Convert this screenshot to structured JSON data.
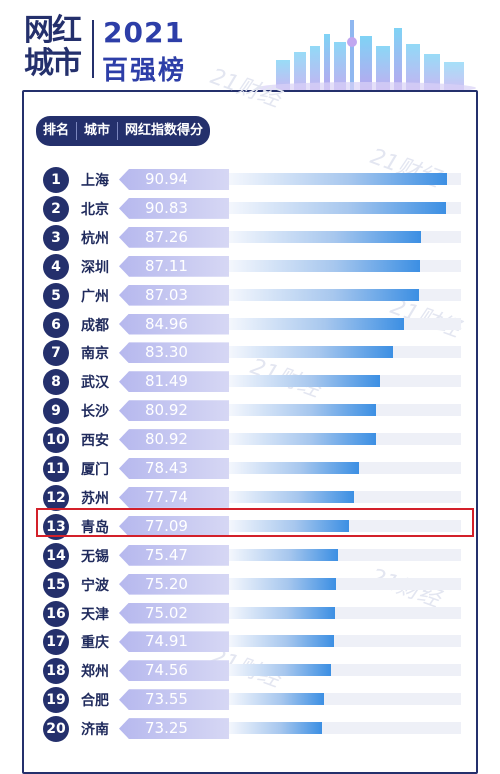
{
  "title": {
    "logo_text": "网红城市",
    "year": "2021",
    "subtitle": "百强榜"
  },
  "header": {
    "rank": "排名",
    "city": "城市",
    "score": "网红指数得分"
  },
  "watermark": "21财经",
  "colors": {
    "navy": "#24306c",
    "accent_blue": "#2d3ea8",
    "bar_end": "#3c8fe3",
    "score_tag": "#b6b8ee",
    "highlight": "#d3202a"
  },
  "chart_data": {
    "type": "bar",
    "orientation": "horizontal",
    "highlighted_rank": 13,
    "rows": [
      {
        "rank": "1",
        "city": "上海",
        "value": 90.94,
        "label": "90.94"
      },
      {
        "rank": "2",
        "city": "北京",
        "value": 90.83,
        "label": "90.83"
      },
      {
        "rank": "3",
        "city": "杭州",
        "value": 87.26,
        "label": "87.26"
      },
      {
        "rank": "4",
        "city": "深圳",
        "value": 87.11,
        "label": "87.11"
      },
      {
        "rank": "5",
        "city": "广州",
        "value": 87.03,
        "label": "87.03"
      },
      {
        "rank": "6",
        "city": "成都",
        "value": 84.96,
        "label": "84.96"
      },
      {
        "rank": "7",
        "city": "南京",
        "value": 83.3,
        "label": "83.30"
      },
      {
        "rank": "8",
        "city": "武汉",
        "value": 81.49,
        "label": "81.49"
      },
      {
        "rank": "9",
        "city": "长沙",
        "value": 80.92,
        "label": "80.92"
      },
      {
        "rank": "10",
        "city": "西安",
        "value": 80.92,
        "label": "80.92"
      },
      {
        "rank": "11",
        "city": "厦门",
        "value": 78.43,
        "label": "78.43"
      },
      {
        "rank": "12",
        "city": "苏州",
        "value": 77.74,
        "label": "77.74"
      },
      {
        "rank": "13",
        "city": "青岛",
        "value": 77.09,
        "label": "77.09"
      },
      {
        "rank": "14",
        "city": "无锡",
        "value": 75.47,
        "label": "75.47"
      },
      {
        "rank": "15",
        "city": "宁波",
        "value": 75.2,
        "label": "75.20"
      },
      {
        "rank": "16",
        "city": "天津",
        "value": 75.02,
        "label": "75.02"
      },
      {
        "rank": "17",
        "city": "重庆",
        "value": 74.91,
        "label": "74.91"
      },
      {
        "rank": "18",
        "city": "郑州",
        "value": 74.56,
        "label": "74.56"
      },
      {
        "rank": "19",
        "city": "合肥",
        "value": 73.55,
        "label": "73.55"
      },
      {
        "rank": "20",
        "city": "济南",
        "value": 73.25,
        "label": "73.25"
      }
    ]
  }
}
